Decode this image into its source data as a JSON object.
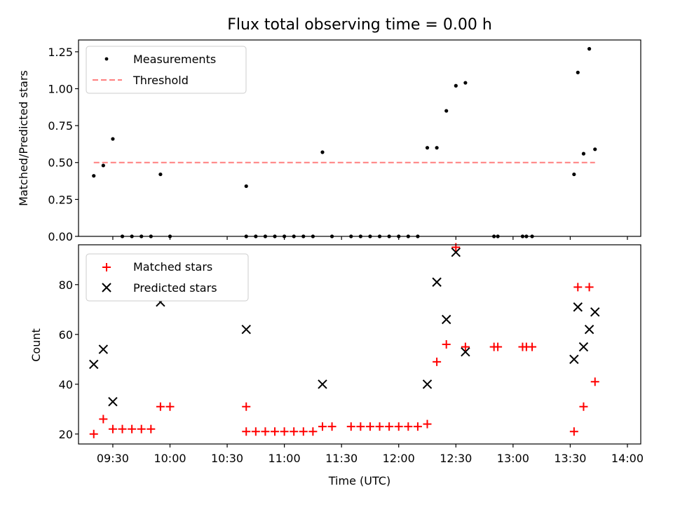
{
  "colors": {
    "measurement": "#000000",
    "threshold": "#ff7f7f",
    "matched": "#ff0000",
    "predicted": "#000000"
  },
  "chart_data": [
    {
      "type": "scatter",
      "title": "Flux total observing time = 0.00 h",
      "ylabel": "Matched/Predicted stars",
      "xlabel": "",
      "xlim": [
        "09:12",
        "14:07"
      ],
      "ylim": [
        0,
        1.33
      ],
      "y_ticks": [
        "0.00",
        "0.25",
        "0.50",
        "0.75",
        "1.00",
        "1.25"
      ],
      "legend_position": "top-left",
      "series": [
        {
          "name": "Measurements",
          "marker": "dot",
          "points": [
            [
              "09:20",
              0.41
            ],
            [
              "09:25",
              0.48
            ],
            [
              "09:30",
              0.66
            ],
            [
              "09:35",
              0.0
            ],
            [
              "09:40",
              0.0
            ],
            [
              "09:45",
              0.0
            ],
            [
              "09:50",
              0.0
            ],
            [
              "09:55",
              0.42
            ],
            [
              "10:00",
              0.0
            ],
            [
              "10:40",
              0.34
            ],
            [
              "10:40",
              0.0
            ],
            [
              "10:45",
              0.0
            ],
            [
              "10:50",
              0.0
            ],
            [
              "10:55",
              0.0
            ],
            [
              "11:00",
              0.0
            ],
            [
              "11:05",
              0.0
            ],
            [
              "11:10",
              0.0
            ],
            [
              "11:15",
              0.0
            ],
            [
              "11:20",
              0.57
            ],
            [
              "11:25",
              0.0
            ],
            [
              "11:35",
              0.0
            ],
            [
              "11:40",
              0.0
            ],
            [
              "11:45",
              0.0
            ],
            [
              "11:50",
              0.0
            ],
            [
              "11:55",
              0.0
            ],
            [
              "12:00",
              0.0
            ],
            [
              "12:05",
              0.0
            ],
            [
              "12:10",
              0.0
            ],
            [
              "12:15",
              0.6
            ],
            [
              "12:20",
              0.6
            ],
            [
              "12:25",
              0.85
            ],
            [
              "12:30",
              1.02
            ],
            [
              "12:35",
              1.04
            ],
            [
              "12:50",
              0.0
            ],
            [
              "12:52",
              0.0
            ],
            [
              "13:05",
              0.0
            ],
            [
              "13:07",
              0.0
            ],
            [
              "13:10",
              0.0
            ],
            [
              "13:32",
              0.42
            ],
            [
              "13:34",
              1.11
            ],
            [
              "13:37",
              0.56
            ],
            [
              "13:40",
              1.27
            ],
            [
              "13:43",
              0.59
            ]
          ]
        },
        {
          "name": "Threshold",
          "marker": "dashed-line",
          "points": [
            [
              "09:20",
              0.5
            ],
            [
              "13:43",
              0.5
            ]
          ]
        }
      ]
    },
    {
      "type": "scatter",
      "title": "",
      "ylabel": "Count",
      "xlabel": "Time (UTC)",
      "xlim": [
        "09:12",
        "14:07"
      ],
      "ylim": [
        16,
        96
      ],
      "y_ticks": [
        "20",
        "40",
        "60",
        "80"
      ],
      "x_ticks": [
        "09:30",
        "10:00",
        "10:30",
        "11:00",
        "11:30",
        "12:00",
        "12:30",
        "13:00",
        "13:30",
        "14:00"
      ],
      "legend_position": "top-left",
      "series": [
        {
          "name": "Matched stars",
          "marker": "plus",
          "points": [
            [
              "09:20",
              20
            ],
            [
              "09:25",
              26
            ],
            [
              "09:30",
              22
            ],
            [
              "09:35",
              22
            ],
            [
              "09:40",
              22
            ],
            [
              "09:45",
              22
            ],
            [
              "09:50",
              22
            ],
            [
              "09:55",
              31
            ],
            [
              "10:00",
              31
            ],
            [
              "10:40",
              31
            ],
            [
              "10:40",
              21
            ],
            [
              "10:45",
              21
            ],
            [
              "10:50",
              21
            ],
            [
              "10:55",
              21
            ],
            [
              "11:00",
              21
            ],
            [
              "11:05",
              21
            ],
            [
              "11:10",
              21
            ],
            [
              "11:15",
              21
            ],
            [
              "11:20",
              23
            ],
            [
              "11:25",
              23
            ],
            [
              "11:35",
              23
            ],
            [
              "11:40",
              23
            ],
            [
              "11:45",
              23
            ],
            [
              "11:50",
              23
            ],
            [
              "11:55",
              23
            ],
            [
              "12:00",
              23
            ],
            [
              "12:05",
              23
            ],
            [
              "12:10",
              23
            ],
            [
              "12:15",
              24
            ],
            [
              "12:20",
              49
            ],
            [
              "12:25",
              56
            ],
            [
              "12:30",
              95
            ],
            [
              "12:35",
              55
            ],
            [
              "12:50",
              55
            ],
            [
              "12:52",
              55
            ],
            [
              "13:05",
              55
            ],
            [
              "13:07",
              55
            ],
            [
              "13:10",
              55
            ],
            [
              "13:32",
              21
            ],
            [
              "13:34",
              79
            ],
            [
              "13:37",
              31
            ],
            [
              "13:40",
              79
            ],
            [
              "13:43",
              41
            ]
          ]
        },
        {
          "name": "Predicted stars",
          "marker": "x",
          "points": [
            [
              "09:20",
              48
            ],
            [
              "09:25",
              54
            ],
            [
              "09:30",
              33
            ],
            [
              "09:55",
              73
            ],
            [
              "10:40",
              62
            ],
            [
              "11:20",
              40
            ],
            [
              "12:15",
              40
            ],
            [
              "12:20",
              81
            ],
            [
              "12:25",
              66
            ],
            [
              "12:30",
              93
            ],
            [
              "12:35",
              53
            ],
            [
              "13:32",
              50
            ],
            [
              "13:34",
              71
            ],
            [
              "13:37",
              55
            ],
            [
              "13:40",
              62
            ],
            [
              "13:43",
              69
            ]
          ]
        }
      ]
    }
  ]
}
